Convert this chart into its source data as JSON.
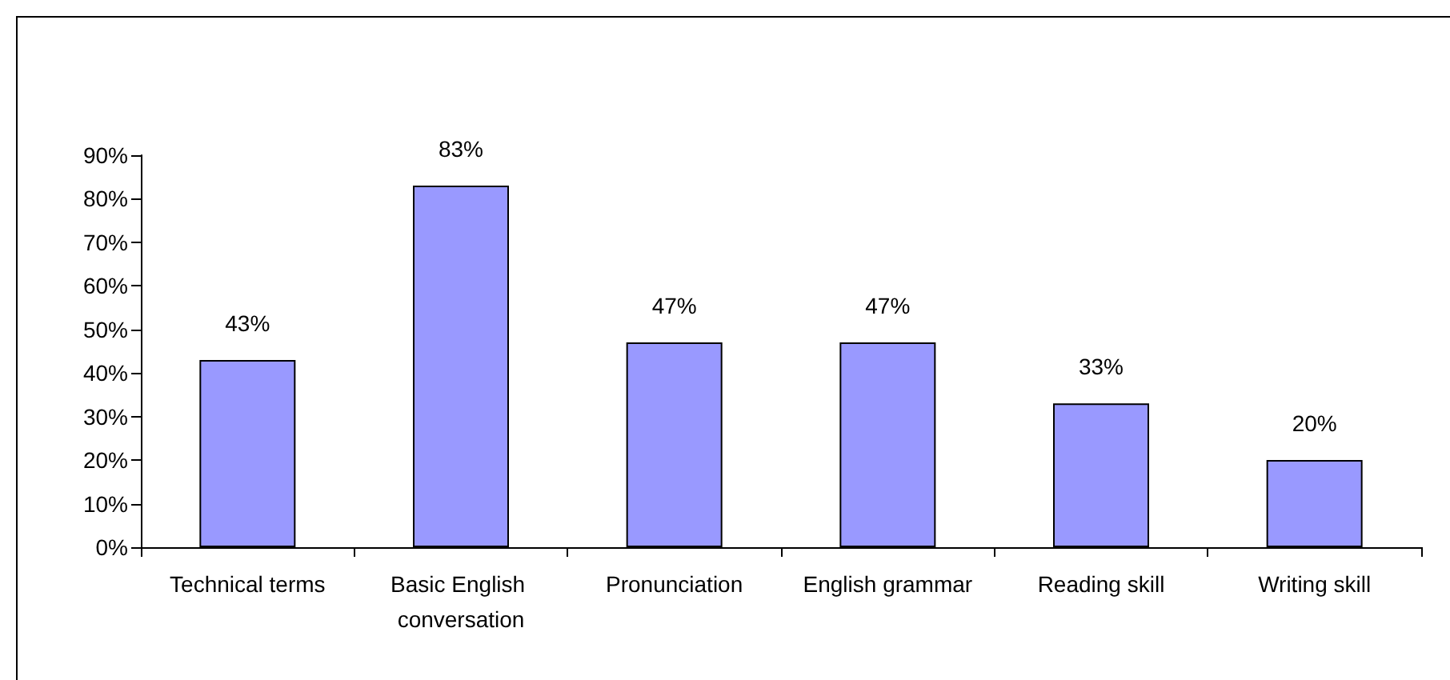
{
  "chart_data": {
    "type": "bar",
    "categories": [
      "Technical terms",
      "Basic English conversation",
      "Pronunciation",
      "English grammar",
      "Reading skill",
      "Writing skill"
    ],
    "values": [
      43,
      83,
      47,
      47,
      33,
      20
    ],
    "value_labels": [
      "43%",
      "83%",
      "47%",
      "47%",
      "33%",
      "20%"
    ],
    "color": "#9999ff",
    "ylim": [
      0,
      90
    ],
    "yticks": [
      {
        "value": 0,
        "label": "0%"
      },
      {
        "value": 10,
        "label": "10%"
      },
      {
        "value": 20,
        "label": "20%"
      },
      {
        "value": 30,
        "label": "30%"
      },
      {
        "value": 40,
        "label": "40%"
      },
      {
        "value": 50,
        "label": "50%"
      },
      {
        "value": 60,
        "label": "60%"
      },
      {
        "value": 70,
        "label": "70%"
      },
      {
        "value": 80,
        "label": "80%"
      },
      {
        "value": 90,
        "label": "90%"
      }
    ],
    "grid": false
  }
}
